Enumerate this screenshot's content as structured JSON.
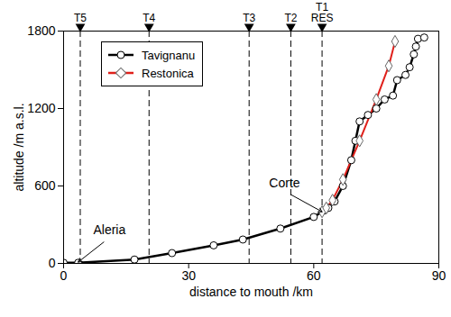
{
  "chart_data": {
    "type": "line",
    "xlabel": "distance to mouth /km",
    "ylabel": "altitude /m a.s.l.",
    "xlim": [
      0,
      90
    ],
    "xticks": [
      0,
      30,
      60,
      90
    ],
    "ylim": [
      0,
      1800
    ],
    "yticks": [
      0,
      600,
      1200,
      1800
    ],
    "legend": "upper left",
    "series": [
      {
        "name": "Tavignanu",
        "color": "#000000",
        "marker": "circle",
        "x": [
          0,
          3.5,
          17,
          26,
          36,
          43,
          52,
          60,
          62.5,
          63.5,
          65,
          67,
          69,
          70,
          71,
          73,
          75,
          77,
          79,
          80,
          82,
          83,
          84,
          84.5,
          85,
          86.5
        ],
        "values": [
          5,
          5,
          30,
          80,
          140,
          185,
          270,
          360,
          410,
          430,
          480,
          600,
          800,
          950,
          1100,
          1150,
          1200,
          1270,
          1300,
          1420,
          1460,
          1520,
          1620,
          1680,
          1740,
          1750
        ]
      },
      {
        "name": "Restonica",
        "color": "#e0201b",
        "marker": "diamond",
        "x": [
          62,
          63,
          64.5,
          67,
          71,
          75,
          78,
          79.5
        ],
        "values": [
          400,
          430,
          490,
          650,
          950,
          1270,
          1530,
          1720
        ]
      }
    ],
    "stations": [
      {
        "label": "T5",
        "x": 4
      },
      {
        "label": "T4",
        "x": 20.5
      },
      {
        "label": "T3",
        "x": 44.5
      },
      {
        "label": "T2",
        "x": 54.5
      },
      {
        "label": "T1\nRES",
        "x": 62
      }
    ],
    "annotations": [
      {
        "text": "Aleria",
        "x": 3.5,
        "y": 10,
        "text_x": 11,
        "text_y": 200
      },
      {
        "text": "Corte",
        "x": 62,
        "y": 400,
        "text_x": 53,
        "text_y": 560
      }
    ]
  }
}
